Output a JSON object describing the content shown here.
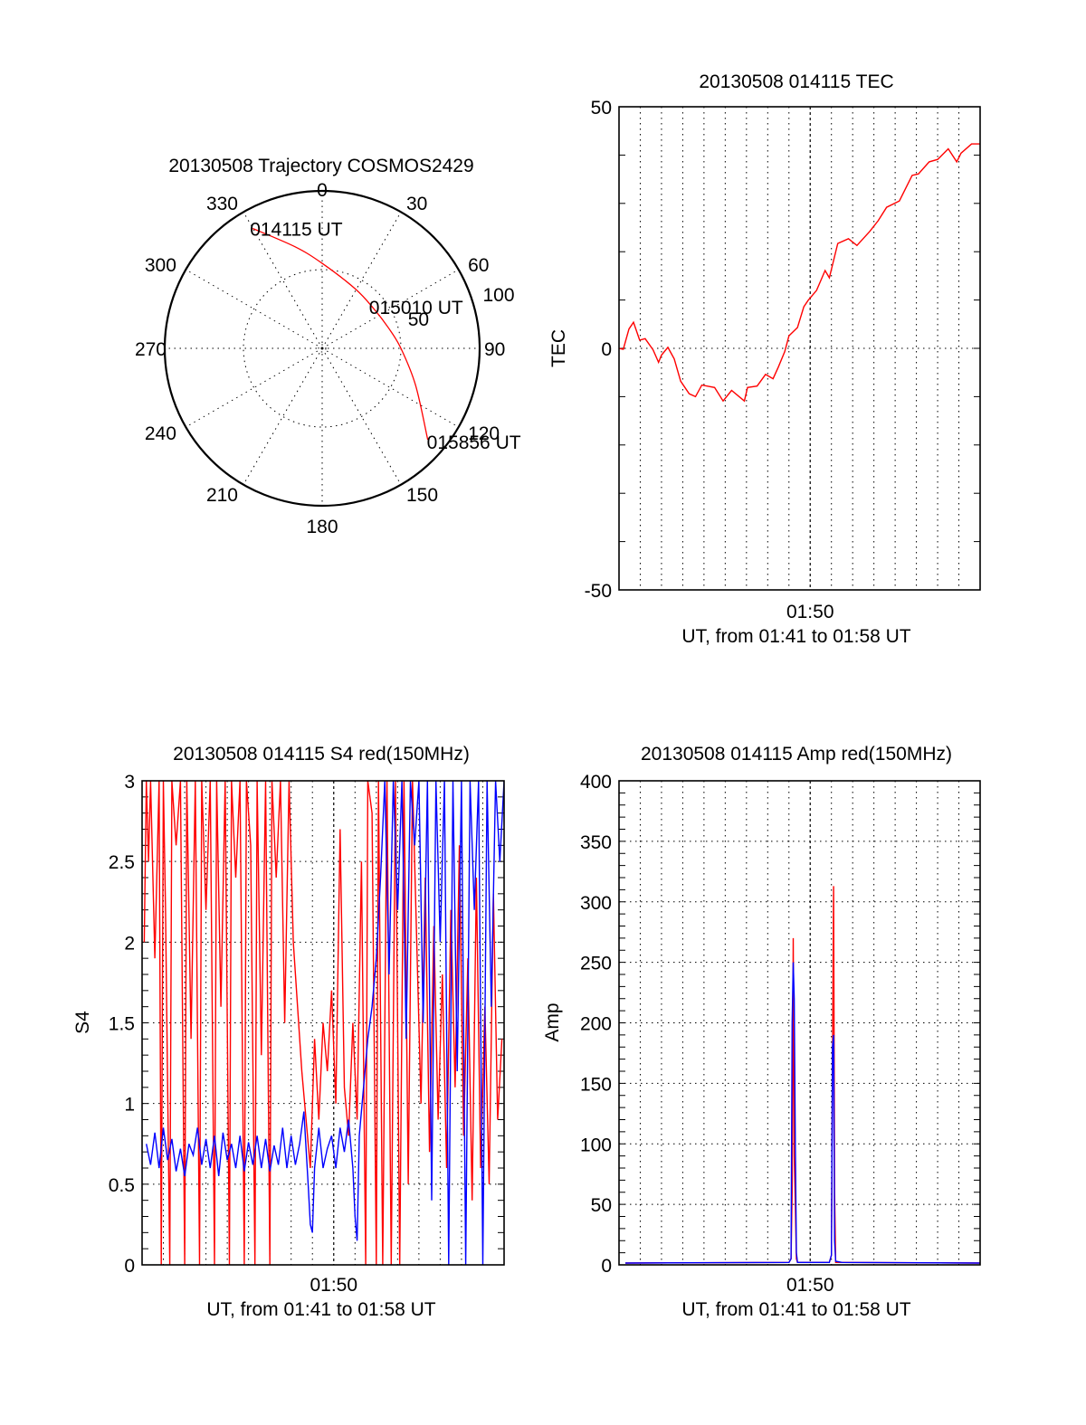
{
  "chart_data": [
    {
      "type": "polar",
      "title": "20130508 Trajectory COSMOS2429",
      "angle_labels": [
        "0",
        "30",
        "60",
        "90",
        "120",
        "150",
        "180",
        "210",
        "240",
        "270",
        "300",
        "330"
      ],
      "angles_deg": [
        0,
        30,
        60,
        90,
        120,
        150,
        180,
        210,
        240,
        270,
        300,
        330
      ],
      "radial_labels": [
        "50",
        "100"
      ],
      "radial_values": [
        50,
        100
      ],
      "rlim": [
        0,
        100
      ],
      "trajectory_color": "#ff0000",
      "trajectory": {
        "azimuth_deg": [
          329.9,
          345,
          0,
          29.2,
          52.2,
          73,
          90,
          111.6,
          130.9
        ],
        "radius": [
          88,
          66.8,
          54,
          43.2,
          41.3,
          44.1,
          50,
          63.8,
          88.7
        ]
      },
      "annotations": [
        {
          "text": "014115 UT",
          "point": "start"
        },
        {
          "text": "015010 UT",
          "point": "middle"
        },
        {
          "text": "015856 UT",
          "point": "end"
        }
      ]
    },
    {
      "type": "line",
      "title": "20130508 014115 TEC",
      "ylabel": "TEC",
      "xlabel": "UT, from 01:41 to 01:58 UT",
      "xtick_label": "01:50",
      "xtick_value_min": 9,
      "xlim_min": [
        0,
        17
      ],
      "ylim": [
        -50,
        50
      ],
      "yticks": [
        "50",
        "0",
        "-50"
      ],
      "ytick_values": [
        50,
        0,
        -50
      ],
      "grid": true,
      "series": [
        {
          "name": "TEC",
          "color": "#ff0000",
          "x_min": [
            0,
            0.2,
            0.47,
            0.68,
            0.97,
            1.23,
            1.6,
            1.86,
            2.0,
            2.3,
            2.6,
            2.9,
            3.3,
            3.6,
            3.9,
            4.5,
            4.9,
            5.3,
            5.9,
            6.05,
            6.5,
            6.9,
            7.25,
            7.5,
            7.8,
            8.0,
            8.4,
            8.7,
            8.9,
            9.3,
            9.7,
            9.9,
            10.3,
            10.8,
            11.2,
            11.8,
            12.2,
            12.6,
            13.2,
            13.8,
            14.1,
            14.6,
            15.0,
            15.5,
            15.9,
            16.1,
            16.6,
            17
          ],
          "values": [
            0,
            -0.2,
            4,
            5.4,
            1.7,
            2,
            -0.3,
            -2.9,
            -1.4,
            0.2,
            -2.2,
            -6.8,
            -9.4,
            -10,
            -7.6,
            -8.1,
            -10.9,
            -8.7,
            -10.9,
            -8.1,
            -7.8,
            -5.4,
            -6.3,
            -3.9,
            -0.7,
            2.6,
            4.3,
            8.6,
            9.9,
            12,
            16.1,
            14.6,
            21.7,
            22.7,
            21.3,
            24.2,
            26.4,
            29.2,
            30.5,
            35.8,
            36.1,
            38.6,
            39.1,
            41.3,
            38.6,
            40.4,
            42.3,
            42.3
          ]
        }
      ]
    },
    {
      "type": "line",
      "title": "20130508 014115 S4 red(150MHz)",
      "ylabel": "S4",
      "xlabel": "UT, from 01:41 to 01:58 UT",
      "xtick_label": "01:50",
      "xtick_value_min": 9,
      "xlim_min": [
        0,
        17
      ],
      "ylim": [
        0,
        3
      ],
      "yticks": [
        "3",
        "2.5",
        "2",
        "1.5",
        "1",
        "0.5",
        "0"
      ],
      "ytick_values": [
        3,
        2.5,
        2,
        1.5,
        1,
        0.5,
        0
      ],
      "grid": true,
      "series": [
        {
          "name": "S4 red",
          "color": "#ff0000",
          "x_min": [
            0.1,
            0.2,
            0.3,
            0.4,
            0.6,
            0.8,
            0.9,
            1.0,
            1.1,
            1.3,
            1.4,
            1.6,
            1.8,
            2.0,
            2.1,
            2.3,
            2.5,
            2.7,
            2.8,
            3.0,
            3.2,
            3.4,
            3.5,
            3.7,
            3.9,
            4.1,
            4.2,
            4.4,
            4.6,
            4.8,
            4.9,
            5.1,
            5.3,
            5.4,
            5.6,
            5.8,
            6.0,
            6.1,
            6.3,
            6.5,
            6.7,
            6.9,
            7.1,
            7.3,
            7.5,
            7.7,
            7.9,
            8.1,
            8.3,
            8.5,
            8.7,
            8.9,
            9.1,
            9.3,
            9.5,
            9.7,
            9.9,
            10.1,
            10.3,
            10.5,
            10.6,
            10.8,
            11.0,
            11.1,
            11.3,
            11.5,
            11.7,
            11.9,
            12.1,
            12.3,
            12.5,
            12.7,
            12.9,
            13.1,
            13.3,
            13.5,
            13.7,
            13.9,
            14.1,
            14.3,
            14.5,
            14.7,
            14.9,
            15.1,
            15.3,
            15.5,
            15.7,
            15.9,
            16.1,
            16.3,
            16.5,
            16.7,
            16.9
          ],
          "values": [
            2.0,
            3,
            2.5,
            3,
            1.9,
            3,
            0,
            3,
            2.2,
            0,
            3,
            2.6,
            3,
            0,
            3,
            1.4,
            3,
            0,
            3,
            2.2,
            3,
            0,
            3,
            1.6,
            3,
            0,
            3,
            2.4,
            3,
            0,
            3,
            2.6,
            0,
            3,
            1.3,
            3,
            0,
            3,
            2.4,
            3,
            1.5,
            3,
            2.0,
            1.6,
            1.2,
            0.9,
            0.6,
            1.4,
            0.9,
            1.5,
            1.2,
            1.7,
            1.0,
            2.7,
            1.1,
            0.8,
            1.5,
            0.9,
            2.5,
            0,
            3,
            2.8,
            0,
            3,
            0,
            3,
            0,
            3,
            0,
            3,
            0.5,
            3,
            2.0,
            1.0,
            2.4,
            0.7,
            2.1,
            0.9,
            1.8,
            0.6,
            2.2,
            1.1,
            2.6,
            0.8,
            1.9,
            0.4,
            2.4,
            0.6,
            1.6,
            0.5,
            2.3,
            0.9,
            1.4
          ]
        },
        {
          "name": "S4 blue",
          "color": "#0000ff",
          "x_min": [
            0.2,
            0.4,
            0.6,
            0.8,
            1.0,
            1.2,
            1.4,
            1.6,
            1.8,
            2.0,
            2.2,
            2.4,
            2.6,
            2.8,
            3.0,
            3.2,
            3.4,
            3.6,
            3.8,
            4.0,
            4.2,
            4.4,
            4.6,
            4.8,
            5.0,
            5.2,
            5.4,
            5.6,
            5.8,
            6.0,
            6.2,
            6.4,
            6.6,
            6.8,
            7.0,
            7.2,
            7.4,
            7.6,
            7.8,
            7.9,
            8.0,
            8.1,
            8.3,
            8.5,
            8.7,
            8.9,
            9.1,
            9.3,
            9.5,
            9.7,
            9.9,
            10.0,
            10.1,
            10.2,
            10.4,
            10.6,
            10.8,
            11.0,
            11.2,
            11.4,
            11.6,
            11.8,
            12.0,
            12.2,
            12.4,
            12.6,
            12.8,
            13.0,
            13.2,
            13.4,
            13.6,
            13.8,
            14.0,
            14.2,
            14.4,
            14.6,
            14.8,
            15.0,
            15.2,
            15.4,
            15.6,
            15.8,
            16.0,
            16.2,
            16.4,
            16.6,
            16.8,
            17.0
          ],
          "values": [
            0.75,
            0.62,
            0.82,
            0.6,
            0.85,
            0.65,
            0.78,
            0.58,
            0.72,
            0.55,
            0.75,
            0.68,
            0.85,
            0.62,
            0.78,
            0.6,
            0.8,
            0.55,
            0.82,
            0.65,
            0.75,
            0.6,
            0.8,
            0.58,
            0.76,
            0.62,
            0.8,
            0.6,
            0.78,
            0.58,
            0.74,
            0.62,
            0.85,
            0.6,
            0.8,
            0.62,
            0.75,
            0.95,
            0.5,
            0.25,
            0.2,
            0.6,
            0.85,
            0.6,
            0.72,
            0.8,
            0.6,
            0.85,
            0.7,
            0.9,
            0.6,
            0.3,
            0.15,
            0.8,
            1.1,
            1.4,
            1.6,
            1.9,
            2.4,
            3.0,
            1.8,
            3.0,
            2.2,
            3.0,
            1.4,
            3.0,
            2.6,
            3.0,
            1.5,
            3.0,
            0.4,
            3.0,
            2.0,
            3.0,
            0.0,
            3.0,
            1.2,
            3.0,
            0.0,
            3.0,
            2.2,
            3.0,
            0.0,
            3.0,
            1.6,
            3.0,
            2.5,
            3.0
          ]
        }
      ]
    },
    {
      "type": "line",
      "title": "20130508 014115 Amp red(150MHz)",
      "ylabel": "Amp",
      "xlabel": "UT, from 01:41 to 01:58 UT",
      "xtick_label": "01:50",
      "xtick_value_min": 9,
      "xlim_min": [
        0,
        17
      ],
      "ylim": [
        0,
        400
      ],
      "yticks": [
        "400",
        "350",
        "300",
        "250",
        "200",
        "150",
        "100",
        "50",
        "0"
      ],
      "ytick_values": [
        400,
        350,
        300,
        250,
        200,
        150,
        100,
        50,
        0
      ],
      "grid": true,
      "series": [
        {
          "name": "Amp red",
          "color": "#ff0000",
          "x_min": [
            0.3,
            8.0,
            8.1,
            8.15,
            8.2,
            8.25,
            8.3,
            8.35,
            8.4,
            9.9,
            10.0,
            10.05,
            10.1,
            10.15,
            10.2,
            10.5,
            17
          ],
          "values": [
            1.5,
            2,
            5,
            60,
            270,
            90,
            50,
            5,
            2,
            2,
            8,
            170,
            313,
            60,
            2,
            2,
            1.5
          ]
        },
        {
          "name": "Amp blue",
          "color": "#0000ff",
          "x_min": [
            0.3,
            8.0,
            8.1,
            8.15,
            8.2,
            8.25,
            8.3,
            8.35,
            8.4,
            9.9,
            10.0,
            10.05,
            10.1,
            10.15,
            10.2,
            10.5,
            17
          ],
          "values": [
            1.5,
            2,
            5,
            200,
            250,
            220,
            100,
            10,
            2,
            2,
            8,
            180,
            190,
            20,
            3,
            2,
            1.5
          ]
        }
      ]
    }
  ]
}
